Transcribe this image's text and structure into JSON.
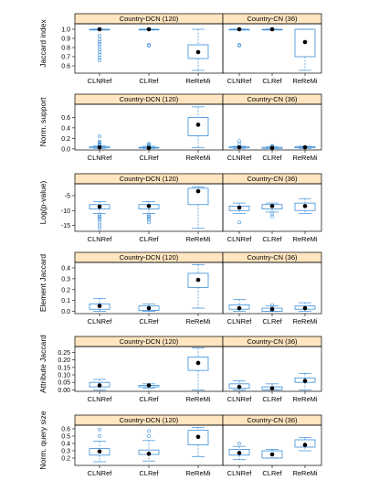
{
  "chart_data": {
    "type": "box",
    "layout": "6 rows x 2 columns, shared x categories, per-row y axis on left",
    "strips": [
      "Country-DCN (120)",
      "Country-CN (36)"
    ],
    "categories": [
      "CLNRef",
      "CLRef",
      "ReReMi"
    ],
    "colors": {
      "box": "#3a8ed8",
      "strip": "#ffe5c0",
      "median": "#000000"
    },
    "rows": [
      {
        "ylabel": "Jaccard index",
        "ylim": [
          0.52,
          1.06
        ],
        "yticks": [
          0.6,
          0.7,
          0.8,
          0.9,
          1.0
        ],
        "ytick_labels": [
          "0.6",
          "0.7",
          "0.8",
          "0.9",
          "1.0"
        ],
        "panels": [
          {
            "strip": "Country-DCN (120)",
            "boxes": [
              {
                "category": "CLNRef",
                "min": 1.0,
                "q1": 1.0,
                "median": 1.0,
                "q3": 1.0,
                "max": 1.0,
                "outliers": [
                  0.93,
                  0.89,
                  0.86,
                  0.84,
                  0.81,
                  0.78,
                  0.75,
                  0.72,
                  0.69,
                  0.66
                ]
              },
              {
                "category": "CLRef",
                "min": 1.0,
                "q1": 1.0,
                "median": 1.0,
                "q3": 1.0,
                "max": 1.0,
                "outliers": [
                  0.83,
                  0.82
                ]
              },
              {
                "category": "ReReMi",
                "min": 0.55,
                "q1": 0.68,
                "median": 0.75,
                "q3": 0.83,
                "max": 1.0,
                "outliers": []
              }
            ]
          },
          {
            "strip": "Country-CN (36)",
            "boxes": [
              {
                "category": "CLNRef",
                "min": 1.0,
                "q1": 1.0,
                "median": 1.0,
                "q3": 1.0,
                "max": 1.0,
                "outliers": [
                  0.83,
                  0.82
                ]
              },
              {
                "category": "CLRef",
                "min": 1.0,
                "q1": 1.0,
                "median": 1.0,
                "q3": 1.0,
                "max": 1.0,
                "outliers": []
              },
              {
                "category": "ReReMi",
                "min": 0.55,
                "q1": 0.7,
                "median": 0.86,
                "q3": 1.0,
                "max": 1.0,
                "outliers": []
              }
            ]
          }
        ]
      },
      {
        "ylabel": "Norm. support",
        "ylim": [
          -0.02,
          0.85
        ],
        "yticks": [
          0.0,
          0.2,
          0.4,
          0.6
        ],
        "ytick_labels": [
          "0.0",
          "0.2",
          "0.4",
          "0.6"
        ],
        "panels": [
          {
            "strip": "Country-DCN (120)",
            "boxes": [
              {
                "category": "CLNRef",
                "min": 0.01,
                "q1": 0.02,
                "median": 0.03,
                "q3": 0.04,
                "max": 0.06,
                "outliers": [
                  0.24,
                  0.14,
                  0.12,
                  0.1,
                  0.08
                ]
              },
              {
                "category": "CLRef",
                "min": 0.01,
                "q1": 0.02,
                "median": 0.02,
                "q3": 0.03,
                "max": 0.05,
                "outliers": [
                  0.1,
                  0.08,
                  0.06
                ]
              },
              {
                "category": "ReReMi",
                "min": 0.02,
                "q1": 0.25,
                "median": 0.46,
                "q3": 0.6,
                "max": 0.8,
                "outliers": []
              }
            ]
          },
          {
            "strip": "Country-CN (36)",
            "boxes": [
              {
                "category": "CLNRef",
                "min": 0.01,
                "q1": 0.02,
                "median": 0.03,
                "q3": 0.04,
                "max": 0.05,
                "outliers": [
                  0.15,
                  0.09
                ]
              },
              {
                "category": "CLRef",
                "min": 0.01,
                "q1": 0.01,
                "median": 0.02,
                "q3": 0.03,
                "max": 0.04,
                "outliers": [
                  0.06,
                  0.05
                ]
              },
              {
                "category": "ReReMi",
                "min": 0.01,
                "q1": 0.02,
                "median": 0.03,
                "q3": 0.04,
                "max": 0.05,
                "outliers": []
              }
            ]
          }
        ]
      },
      {
        "ylabel": "Log(p-value)",
        "ylim": [
          -17,
          -1
        ],
        "yticks": [
          -15,
          -10,
          -5
        ],
        "ytick_labels": [
          "-15",
          "-10",
          "-5"
        ],
        "panels": [
          {
            "strip": "Country-DCN (120)",
            "boxes": [
              {
                "category": "CLNRef",
                "min": -11.0,
                "q1": -9.5,
                "median": -8.7,
                "q3": -8.0,
                "max": -7.0,
                "outliers": [
                  -11.5,
                  -12.0,
                  -12.5,
                  -13.0,
                  -14.0,
                  -15.0,
                  -16.0
                ]
              },
              {
                "category": "CLRef",
                "min": -11.0,
                "q1": -9.5,
                "median": -8.5,
                "q3": -8.0,
                "max": -7.0,
                "outliers": [
                  -11.5,
                  -12.0,
                  -12.5,
                  -13.0,
                  -14.0
                ]
              },
              {
                "category": "ReReMi",
                "min": -16.0,
                "q1": -8.0,
                "median": -3.5,
                "q3": -2.5,
                "max": -2.0,
                "outliers": []
              }
            ]
          },
          {
            "strip": "Country-CN (36)",
            "boxes": [
              {
                "category": "CLNRef",
                "min": -11.0,
                "q1": -10.0,
                "median": -9.0,
                "q3": -8.5,
                "max": -7.5,
                "outliers": [
                  -14.0
                ]
              },
              {
                "category": "CLRef",
                "min": -10.5,
                "q1": -9.5,
                "median": -8.5,
                "q3": -8.0,
                "max": -7.5,
                "outliers": [
                  -11.0,
                  -12.0
                ]
              },
              {
                "category": "ReReMi",
                "min": -11.0,
                "q1": -10.0,
                "median": -8.5,
                "q3": -7.5,
                "max": -6.0,
                "outliers": []
              }
            ]
          }
        ]
      },
      {
        "ylabel": "Element Jaccard",
        "ylim": [
          -0.02,
          0.45
        ],
        "yticks": [
          0.0,
          0.1,
          0.2,
          0.3,
          0.4
        ],
        "ytick_labels": [
          "0.0",
          "0.1",
          "0.2",
          "0.3",
          "0.4"
        ],
        "panels": [
          {
            "strip": "Country-DCN (120)",
            "boxes": [
              {
                "category": "CLNRef",
                "min": 0.0,
                "q1": 0.02,
                "median": 0.05,
                "q3": 0.07,
                "max": 0.12,
                "outliers": []
              },
              {
                "category": "CLRef",
                "min": 0.0,
                "q1": 0.01,
                "median": 0.03,
                "q3": 0.05,
                "max": 0.07,
                "outliers": []
              },
              {
                "category": "ReReMi",
                "min": 0.03,
                "q1": 0.22,
                "median": 0.29,
                "q3": 0.35,
                "max": 0.43,
                "outliers": []
              }
            ]
          },
          {
            "strip": "Country-CN (36)",
            "boxes": [
              {
                "category": "CLNRef",
                "min": 0.0,
                "q1": 0.02,
                "median": 0.03,
                "q3": 0.06,
                "max": 0.11,
                "outliers": []
              },
              {
                "category": "CLRef",
                "min": 0.0,
                "q1": 0.0,
                "median": 0.02,
                "q3": 0.03,
                "max": 0.05,
                "outliers": [
                  0.06,
                  0.04
                ]
              },
              {
                "category": "ReReMi",
                "min": 0.0,
                "q1": 0.02,
                "median": 0.03,
                "q3": 0.05,
                "max": 0.08,
                "outliers": []
              }
            ]
          }
        ]
      },
      {
        "ylabel": "Attribute Jaccard",
        "ylim": [
          -0.01,
          0.29
        ],
        "yticks": [
          0.0,
          0.05,
          0.1,
          0.15,
          0.2,
          0.25
        ],
        "ytick_labels": [
          "0.00",
          "0.05",
          "0.10",
          "0.15",
          "0.20",
          "0.25"
        ],
        "panels": [
          {
            "strip": "Country-DCN (120)",
            "boxes": [
              {
                "category": "CLNRef",
                "min": 0.0,
                "q1": 0.02,
                "median": 0.03,
                "q3": 0.05,
                "max": 0.07,
                "outliers": []
              },
              {
                "category": "CLRef",
                "min": 0.01,
                "q1": 0.02,
                "median": 0.03,
                "q3": 0.03,
                "max": 0.04,
                "outliers": []
              },
              {
                "category": "ReReMi",
                "min": 0.0,
                "q1": 0.13,
                "median": 0.18,
                "q3": 0.22,
                "max": 0.28,
                "outliers": []
              }
            ]
          },
          {
            "strip": "Country-CN (36)",
            "boxes": [
              {
                "category": "CLNRef",
                "min": 0.0,
                "q1": 0.01,
                "median": 0.02,
                "q3": 0.04,
                "max": 0.06,
                "outliers": []
              },
              {
                "category": "CLRef",
                "min": 0.0,
                "q1": 0.0,
                "median": 0.01,
                "q3": 0.02,
                "max": 0.04,
                "outliers": []
              },
              {
                "category": "ReReMi",
                "min": 0.0,
                "q1": 0.05,
                "median": 0.06,
                "q3": 0.08,
                "max": 0.11,
                "outliers": []
              }
            ]
          }
        ]
      },
      {
        "ylabel": "Norm. query size",
        "ylim": [
          0.1,
          0.65
        ],
        "yticks": [
          0.2,
          0.3,
          0.4,
          0.5,
          0.6
        ],
        "ytick_labels": [
          "0.2",
          "0.3",
          "0.4",
          "0.5",
          "0.6"
        ],
        "panels": [
          {
            "strip": "Country-DCN (120)",
            "boxes": [
              {
                "category": "CLNRef",
                "min": 0.15,
                "q1": 0.24,
                "median": 0.29,
                "q3": 0.33,
                "max": 0.43,
                "outliers": [
                  0.5,
                  0.59
                ]
              },
              {
                "category": "CLRef",
                "min": 0.16,
                "q1": 0.25,
                "median": 0.26,
                "q3": 0.31,
                "max": 0.44,
                "outliers": [
                  0.5,
                  0.57
                ]
              },
              {
                "category": "ReReMi",
                "min": 0.22,
                "q1": 0.38,
                "median": 0.49,
                "q3": 0.58,
                "max": 0.62,
                "outliers": []
              }
            ]
          },
          {
            "strip": "Country-CN (36)",
            "boxes": [
              {
                "category": "CLNRef",
                "min": 0.18,
                "q1": 0.24,
                "median": 0.27,
                "q3": 0.32,
                "max": 0.36,
                "outliers": [
                  0.4
                ]
              },
              {
                "category": "CLRef",
                "min": 0.2,
                "q1": 0.2,
                "median": 0.25,
                "q3": 0.3,
                "max": 0.32,
                "outliers": []
              },
              {
                "category": "ReReMi",
                "min": 0.3,
                "q1": 0.35,
                "median": 0.38,
                "q3": 0.45,
                "max": 0.48,
                "outliers": []
              }
            ]
          }
        ]
      }
    ]
  }
}
